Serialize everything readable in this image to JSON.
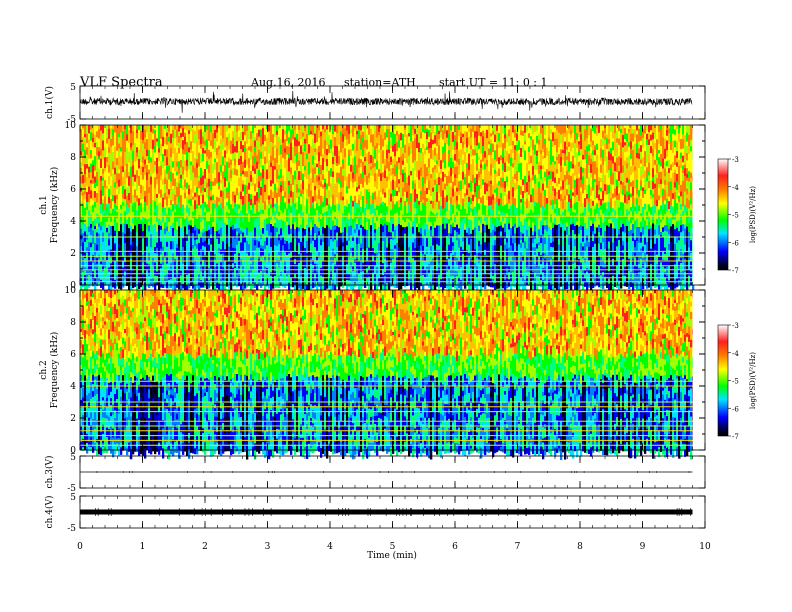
{
  "header": {
    "title": "VLF  Spectra",
    "date": "Aug.16, 2016",
    "station": "station=ATH",
    "start": "start  UT  =   11: 0  : 1"
  },
  "chart_data": [
    {
      "id": "ch1-waveform",
      "type": "line",
      "ylabel": "ch.1(V)",
      "yticks": [
        "5",
        "-5"
      ],
      "ylim": [
        -5,
        5
      ],
      "xlim": [
        0,
        10
      ],
      "trace_end_min": 9.8,
      "description_level": 0.3
    },
    {
      "id": "ch1-spectrogram",
      "type": "heatmap",
      "ylabel": "ch.1\nFrequency  (kHz)",
      "ylabel_lines": [
        "ch.1",
        "Frequency  (kHz)"
      ],
      "yticks": [
        "0",
        "2",
        "4",
        "6",
        "8",
        "10"
      ],
      "ylim": [
        0,
        10
      ],
      "xlim": [
        0,
        10
      ],
      "data_end_min": 9.8,
      "colorbar": {
        "label": "log(PSD)(V²/Hz)",
        "ticks": [
          "-3",
          "-4",
          "-5",
          "-6",
          "-7"
        ],
        "range": [
          -7,
          -3
        ]
      },
      "transition_khz": 4.6,
      "line_khz": [
        0.2,
        0.45,
        0.7,
        0.95,
        1.2,
        1.5,
        1.8,
        2.1,
        3.0,
        4.3
      ]
    },
    {
      "id": "ch2-spectrogram",
      "type": "heatmap",
      "ylabel_lines": [
        "ch.2",
        "Frequency  (kHz)"
      ],
      "yticks": [
        "0",
        "2",
        "4",
        "6",
        "8",
        "10"
      ],
      "ylim": [
        0,
        10
      ],
      "xlim": [
        0,
        10
      ],
      "data_end_min": 9.8,
      "colorbar": {
        "label": "log(PSD)(V²/Hz)",
        "ticks": [
          "-3",
          "-4",
          "-5",
          "-6",
          "-7"
        ],
        "range": [
          -7,
          -3
        ]
      },
      "transition_khz": 5.5,
      "line_khz": [
        0.3,
        0.6,
        0.9,
        1.2,
        1.5,
        1.8,
        2.4,
        2.7,
        3.0,
        4.0,
        4.3
      ]
    },
    {
      "id": "ch3-waveform",
      "type": "line",
      "ylabel": "ch.3(V)",
      "yticks": [
        "5",
        "-5"
      ],
      "ylim": [
        -5,
        5
      ],
      "xlim": [
        0,
        10
      ],
      "trace_end_min": 9.8
    },
    {
      "id": "ch4-waveform",
      "type": "line",
      "ylabel": "ch.4(V)",
      "yticks": [
        "5",
        "-5"
      ],
      "ylim": [
        -5,
        5
      ],
      "xlim": [
        0,
        10
      ],
      "trace_end_min": 9.8,
      "xlabel": "Time  (min)",
      "xticks": [
        "0",
        "1",
        "2",
        "3",
        "4",
        "5",
        "6",
        "7",
        "8",
        "9",
        "10"
      ]
    }
  ]
}
